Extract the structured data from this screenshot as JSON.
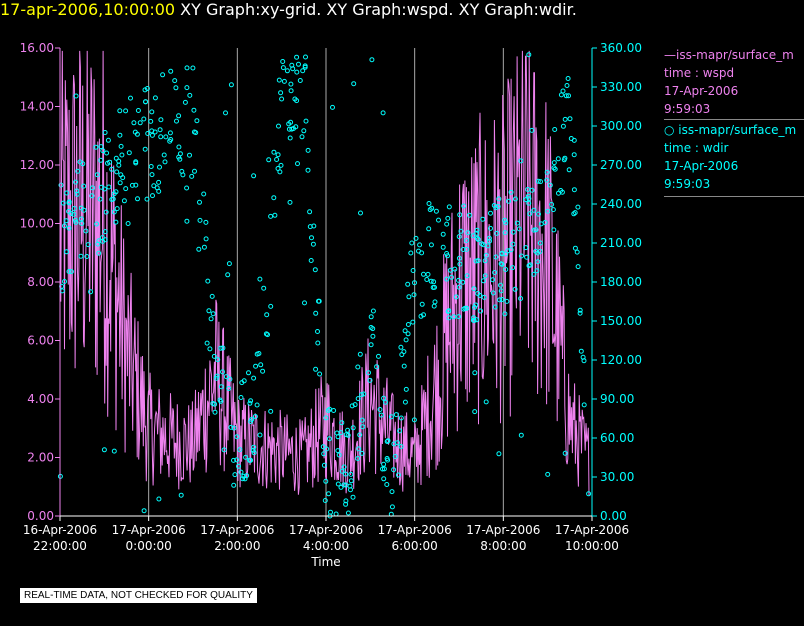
{
  "header": {
    "date": "17-apr-2006,10:00:00",
    "graphs": " XY Graph:xy-grid.  XY Graph:wspd.  XY Graph:wdir."
  },
  "legend": {
    "line_series": {
      "name": "iss-mapr/surface_m",
      "line2": "time : wspd",
      "line3": "17-Apr-2006",
      "line4": "9:59:03"
    },
    "point_series": {
      "name": "iss-mapr/surface_m",
      "line2": "time : wdir",
      "line3": "17-Apr-2006",
      "line4": "9:59:03"
    }
  },
  "footnote": "REAL-TIME DATA, NOT CHECKED FOR QUALITY",
  "colors": {
    "wspd": "#ee82ee",
    "wdir": "#00ffff",
    "grid": "#ffffff"
  },
  "chart_data": {
    "type": "line",
    "xlabel": "Time",
    "x_ticks": [
      {
        "h": 0,
        "date": "16-Apr-2006",
        "time": "22:00:00"
      },
      {
        "h": 2,
        "date": "17-Apr-2006",
        "time": "0:00:00"
      },
      {
        "h": 4,
        "date": "17-Apr-2006",
        "time": "2:00:00"
      },
      {
        "h": 6,
        "date": "17-Apr-2006",
        "time": "4:00:00"
      },
      {
        "h": 8,
        "date": "17-Apr-2006",
        "time": "6:00:00"
      },
      {
        "h": 10,
        "date": "17-Apr-2006",
        "time": "8:00:00"
      },
      {
        "h": 12,
        "date": "17-Apr-2006",
        "time": "10:00:00"
      }
    ],
    "x_range_hours_after_22": [
      0,
      12
    ],
    "left_axis": {
      "ticks": [
        "0.00",
        "2.00",
        "4.00",
        "6.00",
        "8.00",
        "10.00",
        "12.00",
        "14.00",
        "16.00"
      ],
      "ylim": [
        0,
        16
      ]
    },
    "right_axis": {
      "ticks": [
        "0.00",
        "30.00",
        "60.00",
        "90.00",
        "120.00",
        "150.00",
        "180.00",
        "210.00",
        "240.00",
        "270.00",
        "300.00",
        "330.00",
        "360.00"
      ],
      "ylim": [
        0,
        360
      ]
    },
    "series": [
      {
        "name": "wspd",
        "axis": "left",
        "style": "line",
        "hourly_mean": [
          [
            0,
            9.8
          ],
          [
            0.5,
            10.4
          ],
          [
            1.0,
            10.2
          ],
          [
            1.5,
            5.6
          ],
          [
            2.0,
            3.0
          ],
          [
            2.5,
            2.6
          ],
          [
            3.0,
            2.4
          ],
          [
            3.5,
            4.8
          ],
          [
            4.0,
            2.6
          ],
          [
            4.5,
            2.4
          ],
          [
            5.0,
            2.2
          ],
          [
            5.5,
            2.0
          ],
          [
            6.0,
            3.2
          ],
          [
            6.5,
            2.0
          ],
          [
            7.0,
            4.0
          ],
          [
            7.5,
            2.6
          ],
          [
            8.0,
            2.0
          ],
          [
            8.5,
            4.5
          ],
          [
            9.0,
            7.8
          ],
          [
            9.5,
            8.4
          ],
          [
            10.0,
            8.8
          ],
          [
            10.5,
            10.4
          ],
          [
            11.0,
            9.0
          ],
          [
            11.5,
            3.2
          ],
          [
            11.9,
            2.0
          ]
        ]
      },
      {
        "name": "wdir",
        "axis": "right",
        "style": "points",
        "hourly_mean": [
          [
            0,
            215
          ],
          [
            0.5,
            230
          ],
          [
            1.0,
            250
          ],
          [
            1.5,
            290
          ],
          [
            2.0,
            285
          ],
          [
            2.5,
            300
          ],
          [
            3.0,
            300
          ],
          [
            3.5,
            100
          ],
          [
            4.0,
            60
          ],
          [
            4.5,
            90
          ],
          [
            5.0,
            320
          ],
          [
            5.5,
            335
          ],
          [
            6.0,
            40
          ],
          [
            6.5,
            30
          ],
          [
            7.0,
            130
          ],
          [
            7.5,
            30
          ],
          [
            8.0,
            200
          ],
          [
            8.5,
            195
          ],
          [
            9.0,
            195
          ],
          [
            9.5,
            190
          ],
          [
            10.0,
            205
          ],
          [
            10.5,
            205
          ],
          [
            11.0,
            250
          ],
          [
            11.5,
            300
          ],
          [
            11.9,
            90
          ]
        ]
      }
    ]
  }
}
